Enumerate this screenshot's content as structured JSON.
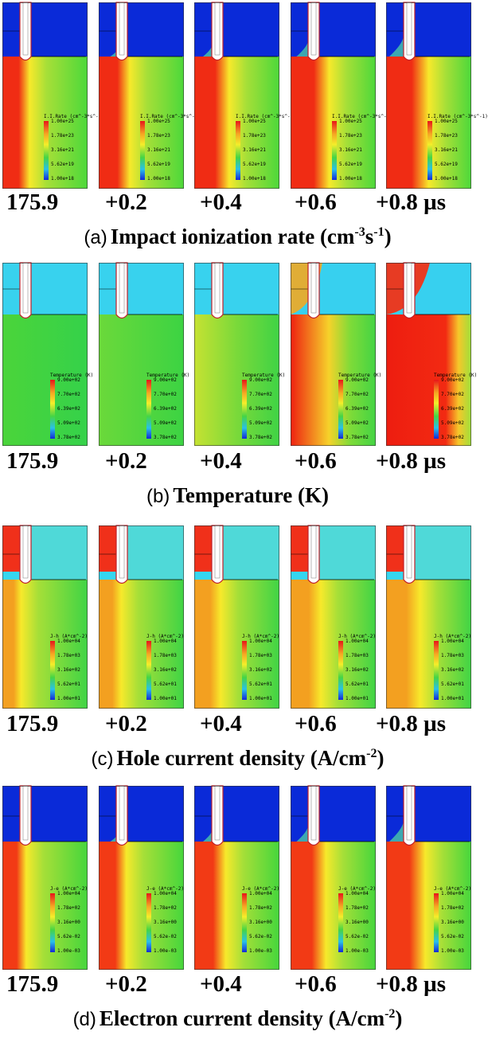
{
  "times": [
    "175.9",
    "+0.2",
    "+0.4",
    "+0.6",
    "+0.8 µs"
  ],
  "rows": [
    {
      "letter": "(a)",
      "caption_main": "Impact ionization rate (cm",
      "caption_sup1": "-3",
      "caption_mid": "s",
      "caption_sup2": "-1",
      "caption_end": ")",
      "legend_title": "I.I.Rate (cm^-3*s^-1)",
      "legend_ticks": [
        "1.00e+25",
        "1.78e+23",
        "3.16e+21",
        "5.62e+19",
        "1.00e+18"
      ],
      "colors": {
        "top": "#0a2ad8",
        "bottom": "#4cd83a"
      }
    },
    {
      "letter": "(b)",
      "caption_main": "Temperature (K)",
      "caption_sup1": "",
      "caption_mid": "",
      "caption_sup2": "",
      "caption_end": "",
      "legend_title": "Temperature (K)",
      "legend_ticks": [
        "9.00e+02",
        "7.70e+02",
        "6.39e+02",
        "5.09e+02",
        "3.78e+02"
      ],
      "colors": {
        "top": "#35d6f0",
        "bottom": "#40d448"
      }
    },
    {
      "letter": "(c)",
      "caption_main": "Hole current density (A/cm",
      "caption_sup1": "-2",
      "caption_mid": "",
      "caption_sup2": "",
      "caption_end": ")",
      "legend_title": "J-h (A*cm^-2)",
      "legend_ticks": [
        "1.00e+04",
        "1.78e+03",
        "3.16e+02",
        "5.62e+01",
        "1.00e+01"
      ],
      "colors": {
        "top": "#35d6f0",
        "bottom": "#3fd445"
      }
    },
    {
      "letter": "(d)",
      "caption_main": "Electron current density (A/cm",
      "caption_sup1": "-2",
      "caption_mid": "",
      "caption_sup2": "",
      "caption_end": ")",
      "legend_title": "J-e (A*cm^-2)",
      "legend_ticks": [
        "1.00e+04",
        "1.78e+02",
        "3.16e+00",
        "5.62e-02",
        "1.00e-03"
      ],
      "colors": {
        "top": "#0a2ad8",
        "bottom": "#45d63c"
      }
    }
  ]
}
